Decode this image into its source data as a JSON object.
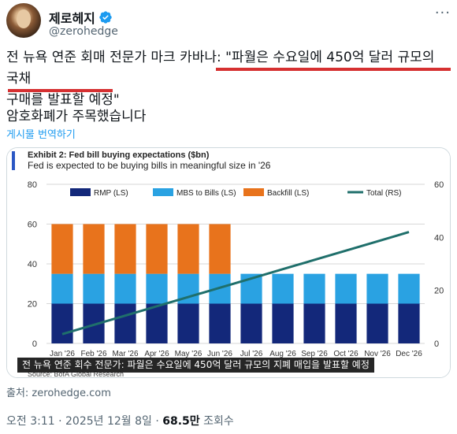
{
  "author": {
    "display_name": "제로헤지",
    "handle": "@zerohedge"
  },
  "tweet": {
    "text_prefix": "전 뉴욕 연준 회매 전문가 마크 카바나: ",
    "quote_line1": "\"파월은 수요일에 450억 달러 규모의 국채",
    "quote_line2": "구매를 발표할 예정\"",
    "line2": "암호화폐가 주목했습니다",
    "translate_link": "게시물 번역하기",
    "underline_color": "#d63031"
  },
  "chart_data": {
    "type": "bar",
    "exhibit": "Exhibit 2: Fed bill buying expectations ($bn)",
    "subtitle": "Fed is expected to be buying bills in meaningful size in '26",
    "categories": [
      "Jan '26",
      "Feb '26",
      "Mar '26",
      "Apr '26",
      "May '26",
      "Jun '26",
      "Jul '26",
      "Aug '26",
      "Sep '26",
      "Oct '26",
      "Nov '26",
      "Dec '26"
    ],
    "series": [
      {
        "name": "RMP (LS)",
        "color": "#13287a",
        "values": [
          20,
          20,
          20,
          20,
          20,
          20,
          20,
          20,
          20,
          20,
          20,
          20
        ]
      },
      {
        "name": "MBS to Bills (LS)",
        "color": "#2aa2e2",
        "values": [
          15,
          15,
          15,
          15,
          15,
          15,
          15,
          15,
          15,
          15,
          15,
          15
        ]
      },
      {
        "name": "Backfill (LS)",
        "color": "#e8731c",
        "values": [
          25,
          25,
          25,
          25,
          25,
          25,
          0,
          0,
          0,
          0,
          0,
          0
        ]
      },
      {
        "name": "Total (RS)",
        "color": "#1f6f6b",
        "type": "line",
        "values": [
          35,
          70,
          105,
          140,
          175,
          210,
          245,
          280,
          315,
          350,
          385,
          420
        ]
      }
    ],
    "left_ticks": [
      "0",
      "20",
      "40",
      "60",
      "80"
    ],
    "right_ticks": [
      "0",
      "20",
      "40",
      "60"
    ],
    "ylim_left": [
      0,
      80
    ],
    "ylim_right": [
      0,
      600
    ],
    "source": "Source: BofA Global Research"
  },
  "media_caption": "전 뉴욕 연준 회수 전문가: 파월은 수요일에 450억 달러 규모의 지폐 매입을 발표할 예정",
  "source_line": "출처: zerohedge.com",
  "meta": {
    "time": "오전 3:11 · 2025년 12월 8일 · ",
    "views": "68.5만",
    "views_suffix": " 조회수"
  },
  "more_icon": "ellipsis-icon",
  "verified_icon": "verified-badge-icon"
}
